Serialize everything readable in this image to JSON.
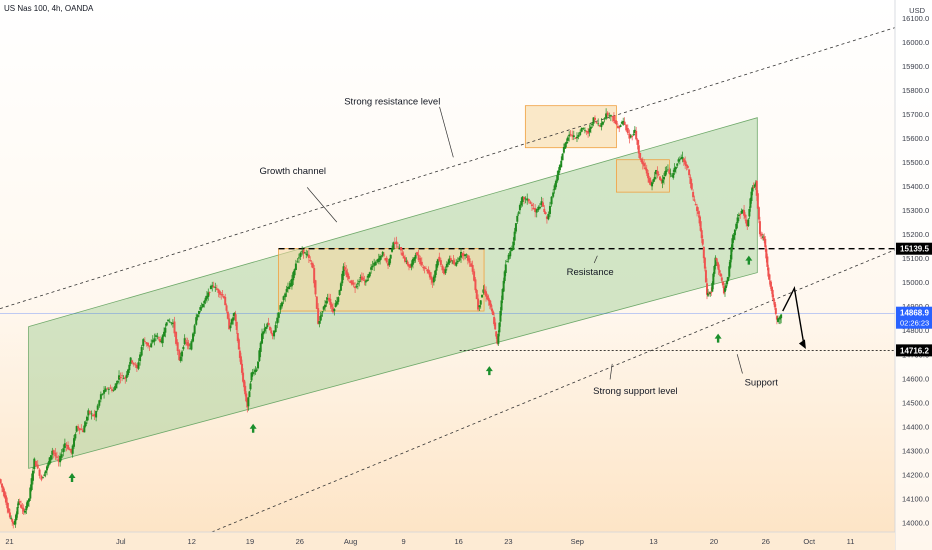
{
  "header": {
    "title": "US Nas 100, 4h, OANDA",
    "currency": "USD"
  },
  "chart_data": {
    "type": "line",
    "ylim": [
      13960,
      16150
    ],
    "y_ticks": [
      14000,
      14100,
      14200,
      14300,
      14400,
      14500,
      14600,
      14700,
      14800,
      14900,
      15000,
      15100,
      15200,
      15300,
      15400,
      15500,
      15600,
      15700,
      15800,
      15900,
      16000,
      16100
    ],
    "x_ticks": [
      {
        "label": "21",
        "x": 0.9
      },
      {
        "label": "Jul",
        "x": 11.4
      },
      {
        "label": "12",
        "x": 18.1
      },
      {
        "label": "19",
        "x": 23.6
      },
      {
        "label": "26",
        "x": 28.3
      },
      {
        "label": "Aug",
        "x": 33.1
      },
      {
        "label": "9",
        "x": 38.1
      },
      {
        "label": "16",
        "x": 43.3
      },
      {
        "label": "23",
        "x": 48.0
      },
      {
        "label": "Sep",
        "x": 54.5
      },
      {
        "label": "13",
        "x": 61.7
      },
      {
        "label": "20",
        "x": 67.4
      },
      {
        "label": "26",
        "x": 72.3
      },
      {
        "label": "Oct",
        "x": 76.4
      },
      {
        "label": "11",
        "x": 80.3
      }
    ],
    "xlim": [
      0,
      84.5
    ],
    "price_path": [
      [
        0,
        14180
      ],
      [
        0.5,
        14110
      ],
      [
        1.0,
        14020
      ],
      [
        1.4,
        13990
      ],
      [
        1.8,
        14090
      ],
      [
        2.3,
        14040
      ],
      [
        2.8,
        14100
      ],
      [
        3.3,
        14260
      ],
      [
        4.0,
        14180
      ],
      [
        4.5,
        14230
      ],
      [
        5.0,
        14300
      ],
      [
        5.6,
        14250
      ],
      [
        6.2,
        14330
      ],
      [
        6.8,
        14290
      ],
      [
        7.3,
        14400
      ],
      [
        7.9,
        14380
      ],
      [
        8.4,
        14460
      ],
      [
        9.0,
        14440
      ],
      [
        9.6,
        14530
      ],
      [
        10.2,
        14560
      ],
      [
        10.8,
        14550
      ],
      [
        11.3,
        14610
      ],
      [
        11.9,
        14600
      ],
      [
        12.4,
        14680
      ],
      [
        13.0,
        14640
      ],
      [
        13.6,
        14760
      ],
      [
        14.2,
        14730
      ],
      [
        14.8,
        14780
      ],
      [
        15.3,
        14750
      ],
      [
        15.8,
        14840
      ],
      [
        16.4,
        14830
      ],
      [
        17.0,
        14670
      ],
      [
        17.5,
        14760
      ],
      [
        18.0,
        14720
      ],
      [
        18.6,
        14860
      ],
      [
        19.1,
        14900
      ],
      [
        19.6,
        14940
      ],
      [
        20.1,
        14990
      ],
      [
        20.7,
        14960
      ],
      [
        21.2,
        14940
      ],
      [
        21.7,
        14810
      ],
      [
        22.2,
        14870
      ],
      [
        22.6,
        14720
      ],
      [
        23.0,
        14590
      ],
      [
        23.4,
        14480
      ],
      [
        23.8,
        14620
      ],
      [
        24.3,
        14640
      ],
      [
        24.8,
        14780
      ],
      [
        25.3,
        14830
      ],
      [
        25.8,
        14770
      ],
      [
        26.4,
        14880
      ],
      [
        27.0,
        14960
      ],
      [
        27.5,
        14990
      ],
      [
        28.0,
        15080
      ],
      [
        28.6,
        15130
      ],
      [
        29.1,
        15110
      ],
      [
        29.6,
        15060
      ],
      [
        30.1,
        14830
      ],
      [
        30.5,
        14880
      ],
      [
        31.0,
        14940
      ],
      [
        31.5,
        14880
      ],
      [
        32.0,
        14940
      ],
      [
        32.5,
        15060
      ],
      [
        33.0,
        15010
      ],
      [
        33.6,
        14980
      ],
      [
        34.1,
        15020
      ],
      [
        34.6,
        15000
      ],
      [
        35.1,
        15060
      ],
      [
        35.7,
        15090
      ],
      [
        36.2,
        15120
      ],
      [
        36.7,
        15070
      ],
      [
        37.2,
        15170
      ],
      [
        37.8,
        15140
      ],
      [
        38.3,
        15090
      ],
      [
        38.8,
        15060
      ],
      [
        39.3,
        15120
      ],
      [
        39.9,
        15070
      ],
      [
        40.4,
        15050
      ],
      [
        40.9,
        15000
      ],
      [
        41.4,
        15100
      ],
      [
        42.0,
        15040
      ],
      [
        42.5,
        15100
      ],
      [
        43.0,
        15070
      ],
      [
        43.6,
        15120
      ],
      [
        44.1,
        15110
      ],
      [
        44.7,
        15050
      ],
      [
        45.2,
        14890
      ],
      [
        45.7,
        14970
      ],
      [
        46.2,
        14920
      ],
      [
        46.6,
        14860
      ],
      [
        47.0,
        14740
      ],
      [
        47.4,
        14930
      ],
      [
        47.8,
        15080
      ],
      [
        48.4,
        15140
      ],
      [
        48.9,
        15280
      ],
      [
        49.4,
        15350
      ],
      [
        50.0,
        15340
      ],
      [
        50.6,
        15290
      ],
      [
        51.2,
        15330
      ],
      [
        51.7,
        15260
      ],
      [
        52.3,
        15380
      ],
      [
        52.8,
        15460
      ],
      [
        53.3,
        15560
      ],
      [
        53.8,
        15620
      ],
      [
        54.4,
        15600
      ],
      [
        55.0,
        15640
      ],
      [
        55.6,
        15620
      ],
      [
        56.1,
        15680
      ],
      [
        56.7,
        15650
      ],
      [
        57.3,
        15700
      ],
      [
        57.9,
        15690
      ],
      [
        58.4,
        15640
      ],
      [
        58.9,
        15670
      ],
      [
        59.5,
        15600
      ],
      [
        60.0,
        15630
      ],
      [
        60.5,
        15510
      ],
      [
        61.0,
        15470
      ],
      [
        61.5,
        15400
      ],
      [
        62.0,
        15460
      ],
      [
        62.5,
        15420
      ],
      [
        63.0,
        15470
      ],
      [
        63.5,
        15440
      ],
      [
        64.0,
        15500
      ],
      [
        64.5,
        15520
      ],
      [
        65.0,
        15470
      ],
      [
        65.5,
        15350
      ],
      [
        66.0,
        15280
      ],
      [
        66.4,
        15150
      ],
      [
        66.8,
        14950
      ],
      [
        67.2,
        14960
      ],
      [
        67.6,
        15100
      ],
      [
        68.0,
        15040
      ],
      [
        68.4,
        14960
      ],
      [
        68.8,
        15020
      ],
      [
        69.2,
        15180
      ],
      [
        69.7,
        15270
      ],
      [
        70.2,
        15300
      ],
      [
        70.6,
        15230
      ],
      [
        71.0,
        15380
      ],
      [
        71.4,
        15420
      ],
      [
        71.8,
        15200
      ],
      [
        72.2,
        15180
      ],
      [
        72.6,
        15030
      ],
      [
        73.0,
        14940
      ],
      [
        73.4,
        14840
      ],
      [
        73.8,
        14860
      ]
    ],
    "annotations": [
      {
        "text": "Strong resistance level",
        "x": 32.5,
        "price": 15740
      },
      {
        "text": "Growth channel",
        "x": 24.5,
        "price": 15450
      },
      {
        "text": "Resistance",
        "x": 53.5,
        "price": 15030
      },
      {
        "text": "Strong support level",
        "x": 56.0,
        "price": 14535
      },
      {
        "text": "Support",
        "x": 70.3,
        "price": 14570
      }
    ],
    "levels": [
      {
        "price": 15139.5,
        "label": "15139.5",
        "style": "resistance"
      },
      {
        "price": 14716.2,
        "label": "14716.2",
        "style": "support"
      }
    ],
    "current_price": {
      "price": 14868.9,
      "label": "14868.9",
      "countdown": "02:26:23"
    }
  },
  "colors": {
    "up": "#26a69a",
    "up_bar": "#1f8a1f",
    "down": "#ef5350",
    "channel_fill": "#9ccc90",
    "box_fill": "#f5d7a0",
    "box_stroke": "#f0a040",
    "arrow": "#1b8f2c",
    "current": "#2962ff"
  }
}
